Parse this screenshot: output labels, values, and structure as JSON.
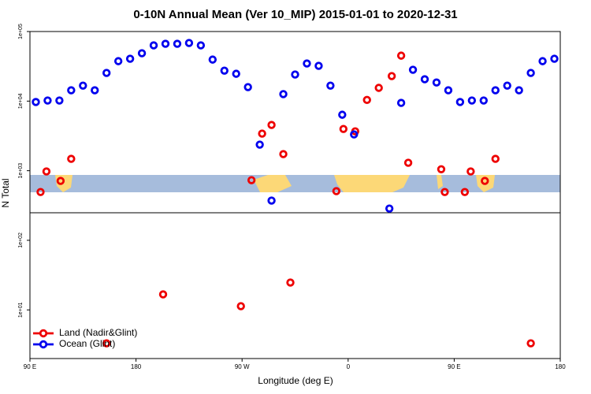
{
  "chart_data": {
    "type": "scatter",
    "title": "0-10N Annual Mean (Ver 10_MIP)   2015-01-01 to 2020-12-31",
    "xlabel": "Longitude (deg E)",
    "ylabel": "N Total",
    "xlim": [
      90,
      540
    ],
    "xticks": [
      {
        "value": 90,
        "label": "90 E"
      },
      {
        "value": 180,
        "label": "180"
      },
      {
        "value": 270,
        "label": "90 W"
      },
      {
        "value": 360,
        "label": "0"
      },
      {
        "value": 450,
        "label": "90 E"
      },
      {
        "value": 540,
        "label": "180"
      }
    ],
    "ylim": [
      2,
      100000
    ],
    "log_y": true,
    "yticks": [
      {
        "value": 10,
        "label": "1e+01"
      },
      {
        "value": 100,
        "label": "1e+02"
      },
      {
        "value": 1000,
        "label": "1e+03"
      },
      {
        "value": 10000,
        "label": "1e+04"
      },
      {
        "value": 100000,
        "label": "1e+05"
      }
    ],
    "legend": "bottom-left",
    "series": [
      {
        "name": "Land (Nadir&Glint)",
        "color": "#ee0000",
        "x": [
          99,
          104,
          116,
          125,
          155,
          203,
          269,
          278,
          287,
          295,
          305,
          311,
          350,
          356,
          366,
          376,
          386,
          397,
          405,
          411,
          439,
          442,
          459,
          464,
          476,
          485,
          515
        ],
        "values": [
          494,
          975,
          713,
          1480,
          3.31,
          16.7,
          11.3,
          731,
          3410,
          4540,
          1730,
          24.7,
          508,
          3980,
          3680,
          10400,
          15500,
          22900,
          45000,
          1300,
          1050,
          494,
          494,
          975,
          713,
          1480,
          3.31
        ]
      },
      {
        "name": "Ocean (Glint)",
        "color": "#0000ee",
        "x": [
          95,
          105,
          115,
          125,
          135,
          145,
          155,
          165,
          175,
          185,
          195,
          205,
          215,
          225,
          235,
          245,
          255,
          265,
          275,
          285,
          295,
          305,
          315,
          325,
          335,
          345,
          355,
          365,
          395,
          405,
          415,
          425,
          435,
          445,
          455,
          465,
          475,
          485,
          495,
          505,
          515,
          525,
          535
        ],
        "values": [
          9700,
          10200,
          10200,
          14300,
          16700,
          14300,
          25400,
          37500,
          40600,
          48700,
          63200,
          66600,
          66600,
          68400,
          63200,
          39500,
          27400,
          24700,
          15900,
          2370,
          372,
          12600,
          24100,
          34700,
          32100,
          16700,
          6370,
          3320,
          286,
          9420,
          28200,
          20600,
          18500,
          14300,
          9700,
          10200,
          10200,
          14300,
          16700,
          14300,
          25400,
          37500,
          40600
        ]
      }
    ]
  }
}
